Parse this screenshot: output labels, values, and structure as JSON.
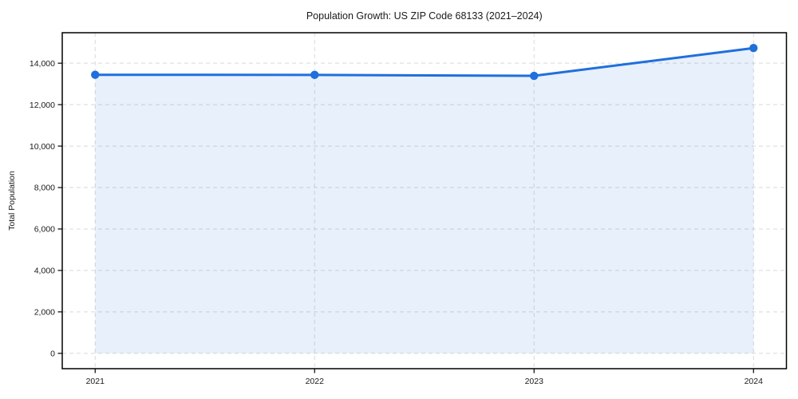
{
  "chart_data": {
    "type": "line",
    "title": "Population Growth: US ZIP Code 68133 (2021–2024)",
    "xlabel": "",
    "ylabel": "Total Population",
    "x": [
      2021,
      2022,
      2023,
      2024
    ],
    "series": [
      {
        "name": "Total Population",
        "values": [
          13440,
          13435,
          13390,
          14730
        ]
      }
    ],
    "area_fill": true,
    "marker": "circle",
    "xtick_labels": [
      "2021",
      "2022",
      "2023",
      "2024"
    ],
    "yticks": [
      0,
      2000,
      4000,
      6000,
      8000,
      10000,
      12000,
      14000
    ],
    "ytick_labels": [
      "0",
      "2,000",
      "4,000",
      "6,000",
      "8,000",
      "10,000",
      "12,000",
      "14,000"
    ],
    "xlim": [
      2020.85,
      2024.15
    ],
    "ylim": [
      -740,
      15470
    ],
    "grid": true,
    "grid_style": "dashed",
    "legend_position": "none",
    "colors": {
      "line": "#1f6fdd",
      "fill": "rgba(31,111,221,0.10)",
      "grid": "#d9d9d9",
      "spine": "#000000",
      "text": "#1a1a1a",
      "background": "#ffffff"
    }
  }
}
